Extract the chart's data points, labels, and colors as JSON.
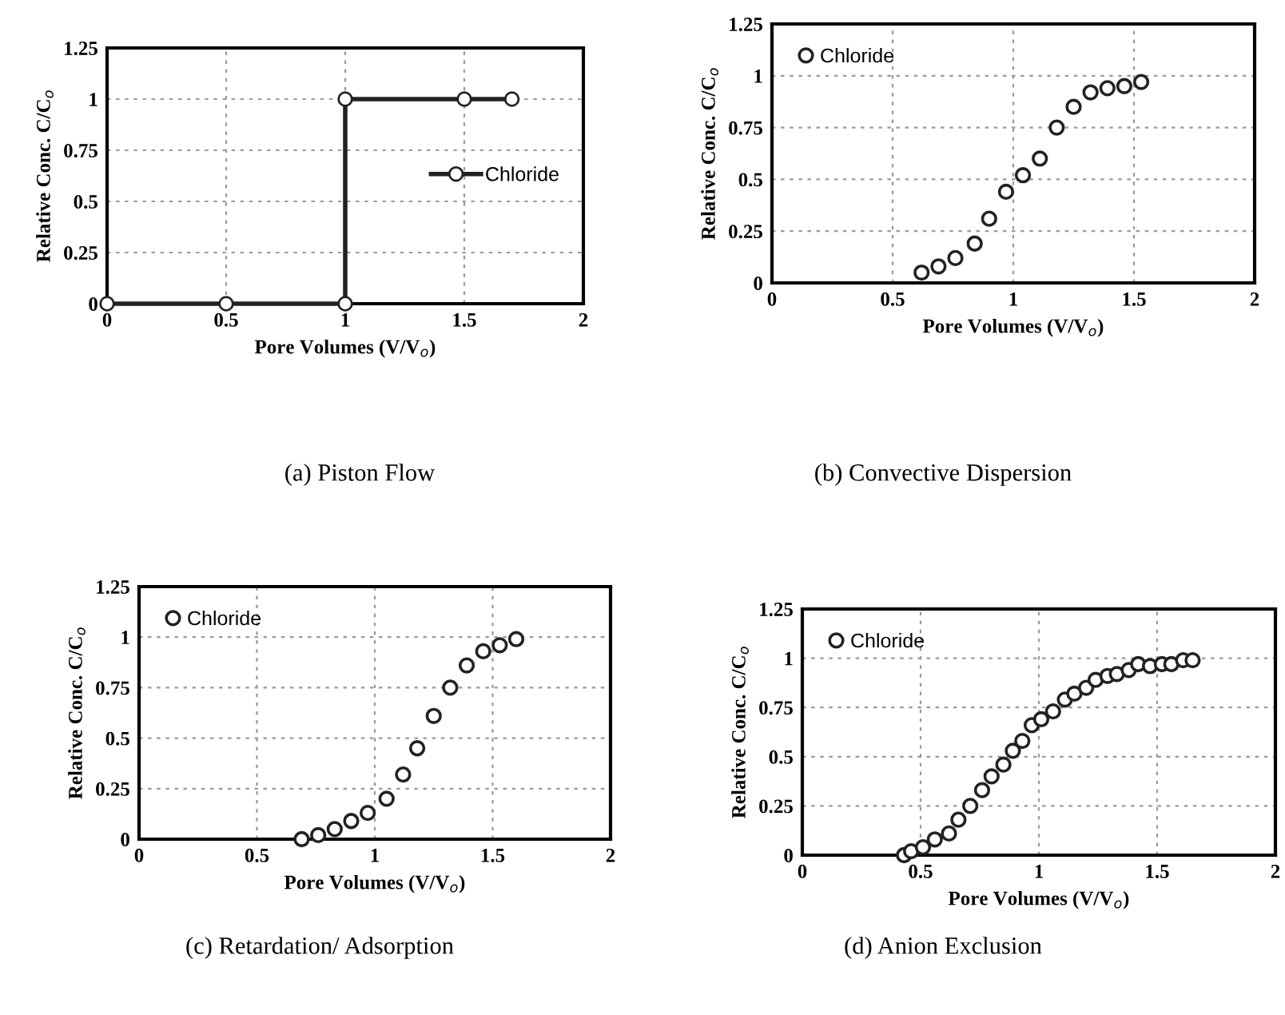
{
  "chart_data": [
    {
      "type": "line",
      "xlabel": "Pore Volumes (V/V$_{o}$)",
      "ylabel": "Relative Conc. C/C$_{o}$",
      "annotations": [
        "(a) Piston Flow"
      ],
      "xlim": [
        0,
        2
      ],
      "ylim": [
        0,
        1.25
      ],
      "xticks": [
        0,
        0.5,
        1,
        1.5,
        2
      ],
      "yticks": [
        0,
        0.25,
        0.5,
        0.75,
        1,
        1.25
      ],
      "grid": true,
      "legend": "right",
      "marker": "circle",
      "line_style": "solid",
      "series": [
        {
          "name": "Chloride",
          "color": "#222222",
          "x": [
            0,
            0.5,
            1,
            1,
            1.5,
            1.7
          ],
          "values": [
            0,
            0,
            0,
            1,
            1,
            1
          ]
        }
      ]
    },
    {
      "type": "scatter",
      "xlabel": "Pore Volumes (V/V$_{o}$)",
      "ylabel": "Relative Conc. C/C$_{o}$",
      "annotations": [
        "(b) Convective Dispersion"
      ],
      "xlim": [
        0,
        2
      ],
      "ylim": [
        0,
        1.25
      ],
      "xticks": [
        0,
        0.5,
        1,
        1.5,
        2
      ],
      "yticks": [
        0,
        0.25,
        0.5,
        0.75,
        1,
        1.25
      ],
      "grid": true,
      "legend": "top left",
      "marker": "circle",
      "series": [
        {
          "name": "Chloride",
          "color": "#222222",
          "x": [
            0.62,
            0.69,
            0.76,
            0.84,
            0.9,
            0.97,
            1.04,
            1.11,
            1.18,
            1.25,
            1.32,
            1.39,
            1.46,
            1.53
          ],
          "values": [
            0.05,
            0.08,
            0.12,
            0.19,
            0.31,
            0.44,
            0.52,
            0.6,
            0.75,
            0.85,
            0.92,
            0.94,
            0.95,
            0.97
          ]
        }
      ]
    },
    {
      "type": "scatter",
      "xlabel": "Pore Volumes (V/V$_{o}$)",
      "ylabel": "Relative Conc. C/C$_{o}$",
      "annotations": [
        "(c) Retardation/ Adsorption"
      ],
      "xlim": [
        0,
        2
      ],
      "ylim": [
        0,
        1.25
      ],
      "xticks": [
        0,
        0.5,
        1,
        1.5,
        2
      ],
      "yticks": [
        0,
        0.25,
        0.5,
        0.75,
        1,
        1.25
      ],
      "grid": true,
      "legend": "top left",
      "marker": "circle",
      "series": [
        {
          "name": "Chloride",
          "color": "#222222",
          "x": [
            0.69,
            0.76,
            0.83,
            0.9,
            0.97,
            1.05,
            1.12,
            1.18,
            1.25,
            1.32,
            1.39,
            1.46,
            1.53,
            1.6
          ],
          "values": [
            0,
            0.02,
            0.05,
            0.09,
            0.13,
            0.2,
            0.32,
            0.45,
            0.61,
            0.75,
            0.86,
            0.93,
            0.96,
            0.99
          ]
        }
      ]
    },
    {
      "type": "scatter",
      "xlabel": "Pore Volumes (V/V$_{o}$)",
      "ylabel": "Relative Conc. C/C$_{o}$",
      "annotations": [
        "(d) Anion Exclusion"
      ],
      "xlim": [
        0,
        2
      ],
      "ylim": [
        0,
        1.25
      ],
      "xticks": [
        0,
        0.5,
        1,
        1.5,
        2
      ],
      "yticks": [
        0,
        0.25,
        0.5,
        0.75,
        1,
        1.25
      ],
      "grid": true,
      "legend": "top left",
      "marker": "circle",
      "series": [
        {
          "name": "Chloride",
          "color": "#222222",
          "x": [
            0.43,
            0.46,
            0.51,
            0.56,
            0.62,
            0.66,
            0.71,
            0.76,
            0.8,
            0.85,
            0.89,
            0.93,
            0.97,
            1.01,
            1.06,
            1.11,
            1.15,
            1.2,
            1.24,
            1.29,
            1.33,
            1.38,
            1.42,
            1.47,
            1.52,
            1.56,
            1.61,
            1.65
          ],
          "values": [
            0,
            0.02,
            0.04,
            0.08,
            0.11,
            0.18,
            0.25,
            0.33,
            0.4,
            0.46,
            0.53,
            0.58,
            0.66,
            0.69,
            0.73,
            0.79,
            0.82,
            0.85,
            0.89,
            0.91,
            0.92,
            0.94,
            0.97,
            0.96,
            0.97,
            0.97,
            0.99,
            0.99
          ]
        }
      ]
    }
  ]
}
